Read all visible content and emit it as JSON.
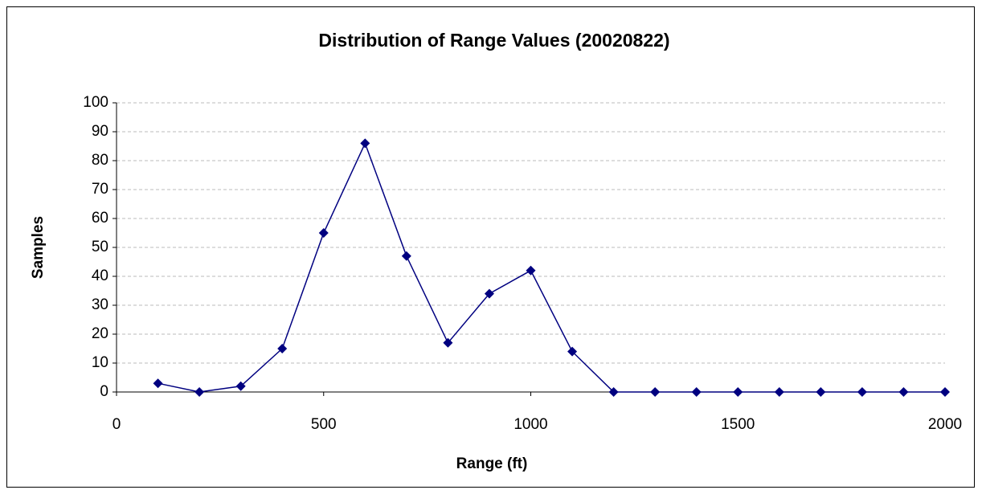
{
  "chart_data": {
    "type": "line",
    "title": "Distribution of Range Values (20020822)",
    "xlabel": "Range (ft)",
    "ylabel": "Samples",
    "x": [
      100,
      200,
      300,
      400,
      500,
      600,
      700,
      800,
      900,
      1000,
      1100,
      1200,
      1300,
      1400,
      1500,
      1600,
      1700,
      1800,
      1900,
      2000
    ],
    "series": [
      {
        "name": "Samples",
        "color": "#000080",
        "values": [
          3,
          0,
          2,
          15,
          55,
          86,
          47,
          17,
          34,
          42,
          14,
          0,
          0,
          0,
          0,
          0,
          0,
          0,
          0,
          0
        ]
      }
    ],
    "xlim": [
      0,
      2000
    ],
    "xticks": [
      0,
      500,
      1000,
      1500,
      2000
    ],
    "ylim": [
      0,
      100
    ],
    "yticks": [
      0,
      10,
      20,
      30,
      40,
      50,
      60,
      70,
      80,
      90,
      100
    ],
    "grid": true
  }
}
